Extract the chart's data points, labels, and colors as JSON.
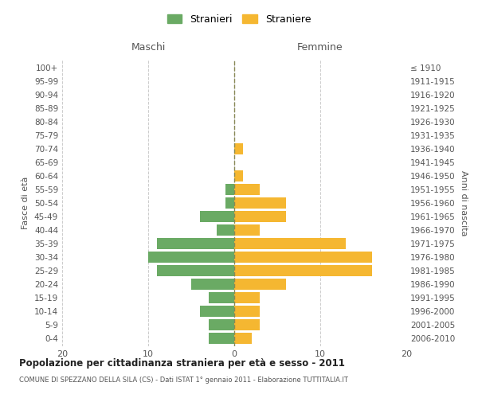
{
  "age_groups": [
    "0-4",
    "5-9",
    "10-14",
    "15-19",
    "20-24",
    "25-29",
    "30-34",
    "35-39",
    "40-44",
    "45-49",
    "50-54",
    "55-59",
    "60-64",
    "65-69",
    "70-74",
    "75-79",
    "80-84",
    "85-89",
    "90-94",
    "95-99",
    "100+"
  ],
  "birth_years": [
    "2006-2010",
    "2001-2005",
    "1996-2000",
    "1991-1995",
    "1986-1990",
    "1981-1985",
    "1976-1980",
    "1971-1975",
    "1966-1970",
    "1961-1965",
    "1956-1960",
    "1951-1955",
    "1946-1950",
    "1941-1945",
    "1936-1940",
    "1931-1935",
    "1926-1930",
    "1921-1925",
    "1916-1920",
    "1911-1915",
    "≤ 1910"
  ],
  "maschi": [
    3,
    3,
    4,
    3,
    5,
    9,
    10,
    9,
    2,
    4,
    1,
    1,
    0,
    0,
    0,
    0,
    0,
    0,
    0,
    0,
    0
  ],
  "femmine": [
    2,
    3,
    3,
    3,
    6,
    16,
    16,
    13,
    3,
    6,
    6,
    3,
    1,
    0,
    1,
    0,
    0,
    0,
    0,
    0,
    0
  ],
  "maschi_color": "#6aaa64",
  "femmine_color": "#f5b731",
  "background_color": "#ffffff",
  "grid_color": "#cccccc",
  "title": "Popolazione per cittadinanza straniera per età e sesso - 2011",
  "subtitle": "COMUNE DI SPEZZANO DELLA SILA (CS) - Dati ISTAT 1° gennaio 2011 - Elaborazione TUTTITALIA.IT",
  "ylabel_left": "Fasce di età",
  "ylabel_right": "Anni di nascita",
  "xlabel_left": "Maschi",
  "xlabel_right": "Femmine",
  "legend_maschi": "Stranieri",
  "legend_femmine": "Straniere",
  "xlim": 20,
  "bar_height": 0.8
}
